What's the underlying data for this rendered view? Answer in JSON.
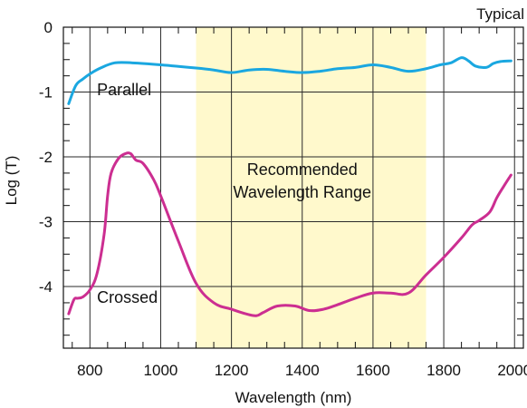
{
  "chart_data": {
    "type": "line",
    "corner_label": "Typical",
    "xlabel": "Wavelength (nm)",
    "ylabel": "Log (T)",
    "xlim": [
      725,
      2025
    ],
    "ylim": [
      -4.95,
      0
    ],
    "x_ticks": [
      800,
      1000,
      1200,
      1400,
      1600,
      1800,
      2000
    ],
    "x_tick_labels": [
      "800",
      "1000",
      "1200",
      "1400",
      "1600",
      "1800",
      "2000"
    ],
    "y_ticks": [
      0,
      -1,
      -2,
      -3,
      -4
    ],
    "y_tick_labels": [
      "0",
      "-1",
      "-2",
      "-3",
      "-4"
    ],
    "grid": true,
    "highlight_band": {
      "x_range": [
        1100,
        1750
      ],
      "color": "#fff9cc",
      "label_lines": [
        "Recommended",
        "Wavelength Range"
      ],
      "label_position": {
        "x": 1400,
        "y": -2.5
      }
    },
    "series": [
      {
        "name": "Parallel",
        "color": "#1aa7e0",
        "label_position": {
          "x": 820,
          "y": -1.05
        },
        "x": [
          740,
          760,
          780,
          800,
          830,
          870,
          920,
          1000,
          1100,
          1150,
          1200,
          1250,
          1300,
          1350,
          1400,
          1450,
          1500,
          1550,
          1600,
          1650,
          1700,
          1750,
          1790,
          1820,
          1850,
          1870,
          1890,
          1920,
          1940,
          1960,
          1990
        ],
        "values": [
          -1.18,
          -0.9,
          -0.8,
          -0.72,
          -0.63,
          -0.55,
          -0.55,
          -0.58,
          -0.63,
          -0.66,
          -0.7,
          -0.66,
          -0.65,
          -0.68,
          -0.7,
          -0.68,
          -0.64,
          -0.62,
          -0.58,
          -0.62,
          -0.68,
          -0.64,
          -0.58,
          -0.55,
          -0.47,
          -0.52,
          -0.6,
          -0.62,
          -0.56,
          -0.53,
          -0.52
        ]
      },
      {
        "name": "Crossed",
        "color": "#cc2e91",
        "label_position": {
          "x": 820,
          "y": -4.25
        },
        "x": [
          740,
          755,
          765,
          780,
          800,
          820,
          840,
          850,
          860,
          880,
          900,
          915,
          930,
          950,
          980,
          1000,
          1050,
          1100,
          1150,
          1200,
          1240,
          1270,
          1290,
          1330,
          1380,
          1420,
          1460,
          1500,
          1550,
          1600,
          1650,
          1700,
          1750,
          1800,
          1850,
          1880,
          1900,
          1930,
          1950,
          1970,
          1990
        ],
        "values": [
          -4.42,
          -4.2,
          -4.18,
          -4.16,
          -4.05,
          -3.8,
          -3.2,
          -2.6,
          -2.25,
          -2.03,
          -1.95,
          -1.95,
          -2.05,
          -2.1,
          -2.35,
          -2.6,
          -3.3,
          -3.95,
          -4.25,
          -4.35,
          -4.42,
          -4.45,
          -4.4,
          -4.3,
          -4.3,
          -4.37,
          -4.35,
          -4.28,
          -4.18,
          -4.1,
          -4.1,
          -4.1,
          -3.82,
          -3.55,
          -3.25,
          -3.05,
          -2.98,
          -2.85,
          -2.63,
          -2.45,
          -2.28
        ]
      }
    ]
  }
}
